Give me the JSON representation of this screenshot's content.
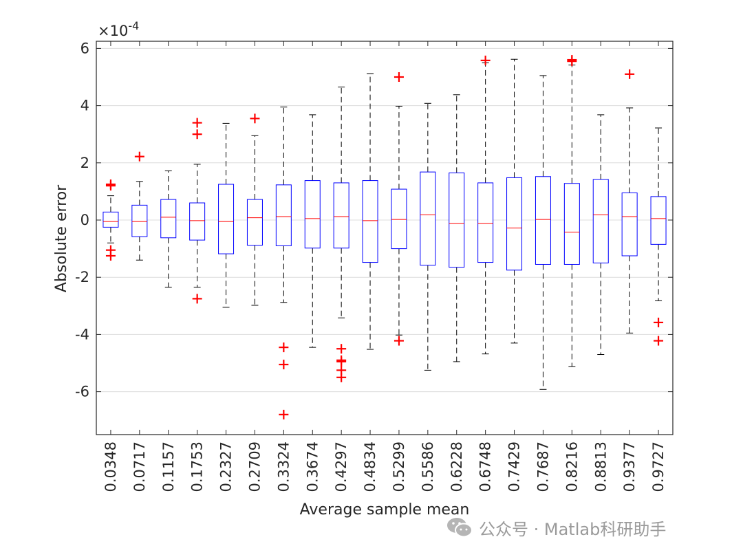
{
  "chart_data": {
    "type": "boxplot",
    "xlabel": "Average sample mean",
    "ylabel": "Absolute error",
    "y_exponent_label": "×10",
    "y_exponent_power": "-4",
    "ylim": [
      -7.5,
      6.25
    ],
    "yticks": [
      -6,
      -4,
      -2,
      0,
      2,
      4,
      6
    ],
    "grid": "horizontal",
    "colors": {
      "box": "#0000ff",
      "median": "#ff0000",
      "whisker": "#000000",
      "outlier": "#ff0000",
      "grid": "#dcdcdc"
    },
    "categories": [
      "0.0348",
      "0.0717",
      "0.1157",
      "0.1753",
      "0.2327",
      "0.2709",
      "0.3324",
      "0.3674",
      "0.4297",
      "0.4834",
      "0.5299",
      "0.5586",
      "0.6228",
      "0.6748",
      "0.7429",
      "0.7687",
      "0.8216",
      "0.8813",
      "0.9377",
      "0.9727"
    ],
    "boxes": [
      {
        "whisker_low": -0.8,
        "q1": -0.25,
        "median": -0.05,
        "q3": 0.28,
        "whisker_high": 0.85,
        "outliers": [
          1.2,
          1.25,
          -1.05,
          -1.25
        ]
      },
      {
        "whisker_low": -1.4,
        "q1": -0.58,
        "median": -0.05,
        "q3": 0.52,
        "whisker_high": 1.35,
        "outliers": [
          2.22
        ]
      },
      {
        "whisker_low": -2.35,
        "q1": -0.62,
        "median": 0.1,
        "q3": 0.72,
        "whisker_high": 1.72,
        "outliers": []
      },
      {
        "whisker_low": -2.35,
        "q1": -0.7,
        "median": -0.02,
        "q3": 0.6,
        "whisker_high": 1.95,
        "outliers": [
          3.4,
          3.0,
          -2.75
        ]
      },
      {
        "whisker_low": -3.05,
        "q1": -1.18,
        "median": -0.05,
        "q3": 1.25,
        "whisker_high": 3.38,
        "outliers": []
      },
      {
        "whisker_low": -2.98,
        "q1": -0.88,
        "median": 0.08,
        "q3": 0.72,
        "whisker_high": 2.95,
        "outliers": [
          3.55
        ]
      },
      {
        "whisker_low": -2.88,
        "q1": -0.9,
        "median": 0.12,
        "q3": 1.23,
        "whisker_high": 3.95,
        "outliers": [
          -4.45,
          -5.05,
          -6.8
        ]
      },
      {
        "whisker_low": -4.45,
        "q1": -0.98,
        "median": 0.05,
        "q3": 1.38,
        "whisker_high": 3.68,
        "outliers": []
      },
      {
        "whisker_low": -3.42,
        "q1": -0.98,
        "median": 0.12,
        "q3": 1.3,
        "whisker_high": 4.65,
        "outliers": [
          -4.5,
          -4.9,
          -4.95,
          -5.25,
          -5.5
        ]
      },
      {
        "whisker_low": -4.52,
        "q1": -1.48,
        "median": -0.02,
        "q3": 1.38,
        "whisker_high": 5.12,
        "outliers": []
      },
      {
        "whisker_low": -4.02,
        "q1": -1.0,
        "median": 0.02,
        "q3": 1.08,
        "whisker_high": 3.98,
        "outliers": [
          5.0,
          -4.22
        ]
      },
      {
        "whisker_low": -5.25,
        "q1": -1.58,
        "median": 0.18,
        "q3": 1.68,
        "whisker_high": 4.08,
        "outliers": []
      },
      {
        "whisker_low": -4.95,
        "q1": -1.65,
        "median": -0.12,
        "q3": 1.65,
        "whisker_high": 4.38,
        "outliers": []
      },
      {
        "whisker_low": -4.68,
        "q1": -1.48,
        "median": -0.12,
        "q3": 1.3,
        "whisker_high": 5.5,
        "outliers": [
          5.58
        ]
      },
      {
        "whisker_low": -4.3,
        "q1": -1.75,
        "median": -0.28,
        "q3": 1.48,
        "whisker_high": 5.62,
        "outliers": []
      },
      {
        "whisker_low": -5.92,
        "q1": -1.55,
        "median": 0.02,
        "q3": 1.52,
        "whisker_high": 5.05,
        "outliers": []
      },
      {
        "whisker_low": -5.12,
        "q1": -1.55,
        "median": -0.42,
        "q3": 1.28,
        "whisker_high": 5.42,
        "outliers": [
          5.6,
          5.55
        ]
      },
      {
        "whisker_low": -4.7,
        "q1": -1.5,
        "median": 0.18,
        "q3": 1.42,
        "whisker_high": 3.68,
        "outliers": []
      },
      {
        "whisker_low": -3.95,
        "q1": -1.25,
        "median": 0.12,
        "q3": 0.95,
        "whisker_high": 3.92,
        "outliers": [
          5.1
        ]
      },
      {
        "whisker_low": -2.82,
        "q1": -0.85,
        "median": 0.05,
        "q3": 0.82,
        "whisker_high": 3.22,
        "outliers": [
          -3.58,
          -4.22
        ]
      }
    ]
  },
  "watermark": {
    "text": "公众号 · Matlab科研助手",
    "icon": "wechat-icon"
  }
}
